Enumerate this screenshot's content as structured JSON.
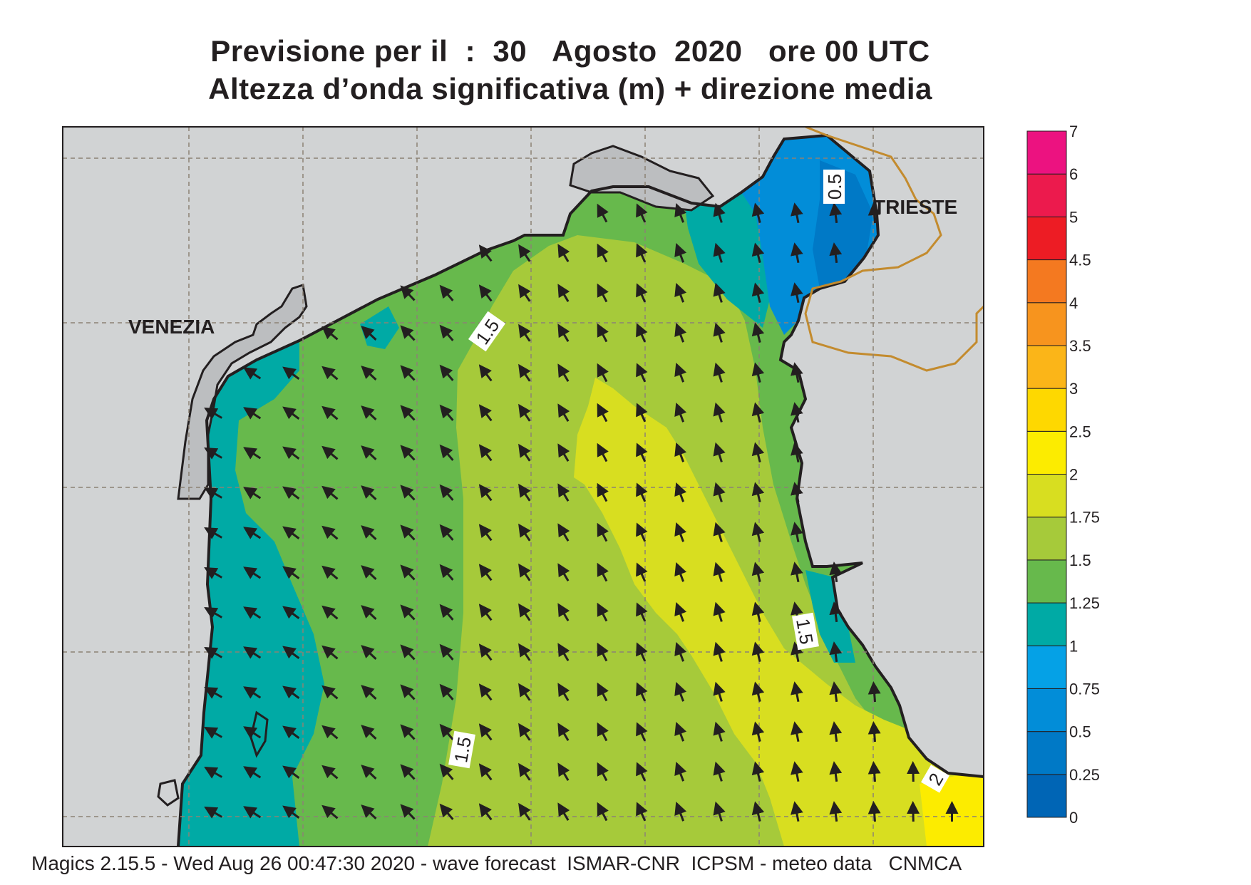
{
  "title_line1": "Previsione per il  :  30   Agosto  2020   ore 00 UTC",
  "title_line2": "Altezza d’onda significativa (m) + direzione media",
  "footer": "Magics 2.15.5 - Wed Aug 26 00:47:30 2020 - wave forecast  ISMAR-CNR  ICPSM - meteo data   CNMCA",
  "place_labels": [
    "VENEZIA",
    "TRIESTE"
  ],
  "contour_labels": [
    "1.5",
    "0.5",
    "1.5",
    "1.5",
    "2"
  ],
  "legend": {
    "ticks": [
      "0",
      "0.25",
      "0.5",
      "0.75",
      "1",
      "1.25",
      "1.5",
      "1.75",
      "2",
      "2.5",
      "3",
      "3.5",
      "4",
      "4.5",
      "5",
      "6",
      "7"
    ],
    "colors": [
      "#0065b5",
      "#0079c6",
      "#028dd8",
      "#05a1e6",
      "#00aaa5",
      "#67b94c",
      "#a6ca3a",
      "#d8de20",
      "#fcec00",
      "#fed800",
      "#fbb518",
      "#f7941e",
      "#f47920",
      "#ed1c24",
      "#ec1a4d",
      "#ec1280"
    ]
  },
  "colors": {
    "land": "#d1d3d4",
    "lagoon_land": "#bcbec0",
    "sea_green": "#67b94c",
    "sea_lightgreen": "#a6ca3a",
    "sea_yellowgreen": "#d8de20",
    "sea_teal": "#00aaa5",
    "sea_blue": "#028dd8",
    "sea_darkblue": "#0079c6",
    "border": "#c38b2e",
    "grid": "#8c8274",
    "arrow": "#231f20"
  },
  "mean_direction": "north-west"
}
